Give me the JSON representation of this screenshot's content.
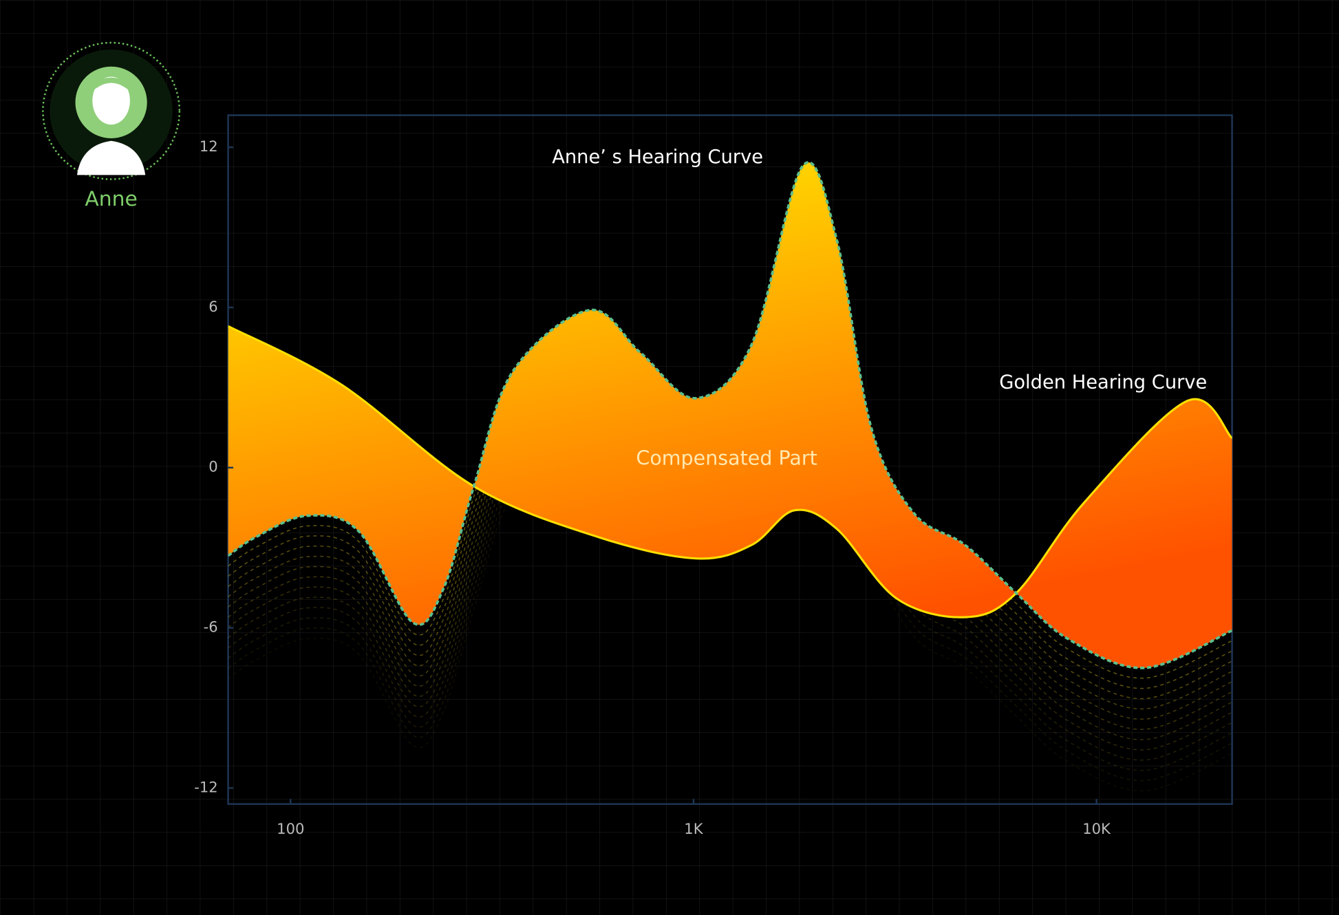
{
  "user": {
    "name": "Anne"
  },
  "chart_data": {
    "type": "line",
    "xscale": "log",
    "xlim": [
      70,
      21700
    ],
    "xticks": [
      {
        "value": 100,
        "label": "100"
      },
      {
        "value": 1000,
        "label": "1K"
      },
      {
        "value": 10000,
        "label": "10K"
      }
    ],
    "ylim": [
      -12.6,
      13.2
    ],
    "yticks": [
      -12,
      -6,
      0,
      6,
      12
    ],
    "fill_label": "Compensated Part",
    "series": [
      {
        "name": "Anne’ s Hearing Curve",
        "color": "#5dbf8c",
        "x": [
          70,
          82,
          110,
          148,
          201,
          240,
          285,
          356,
          552,
          739,
          1013,
          1393,
          1866,
          2270,
          2760,
          3520,
          4720,
          6320,
          8470,
          13150,
          21700
        ],
        "values": [
          -3.3,
          -2.6,
          -1.8,
          -2.4,
          -5.8,
          -4.5,
          -0.7,
          3.6,
          5.9,
          4.3,
          2.6,
          4.6,
          11.3,
          8.5,
          1.5,
          -1.7,
          -2.9,
          -4.7,
          -6.4,
          -7.5,
          -6.1
        ]
      },
      {
        "name": "Golden Hearing Curve",
        "color": "#ffe000",
        "x": [
          70,
          134,
          285,
          580,
          1013,
          1393,
          1777,
          2270,
          3190,
          4720,
          6320,
          9330,
          16800,
          21700
        ],
        "values": [
          5.3,
          3.1,
          -0.7,
          -2.6,
          -3.4,
          -2.9,
          -1.6,
          -2.3,
          -4.9,
          -5.6,
          -4.7,
          -1.3,
          2.5,
          1.1
        ]
      }
    ]
  }
}
